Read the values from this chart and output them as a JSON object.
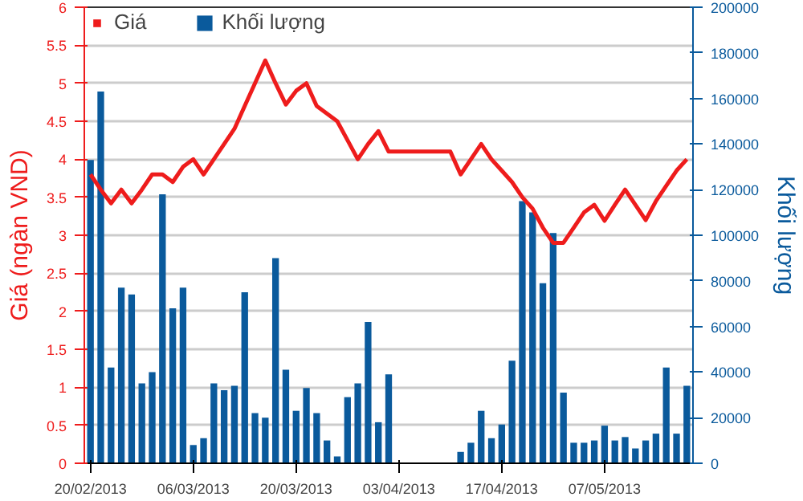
{
  "chart_data": {
    "type": "bar",
    "categories": [
      "20/02/2013",
      null,
      null,
      null,
      null,
      null,
      null,
      null,
      null,
      null,
      "06/03/2013",
      null,
      null,
      null,
      null,
      null,
      null,
      null,
      null,
      null,
      "20/03/2013",
      null,
      null,
      null,
      null,
      null,
      null,
      null,
      null,
      null,
      "03/04/2013",
      null,
      null,
      null,
      null,
      null,
      null,
      null,
      null,
      null,
      "17/04/2013",
      null,
      null,
      null,
      null,
      null,
      null,
      null,
      null,
      null,
      "07/05/2013",
      null,
      null,
      null,
      null,
      null,
      null,
      null,
      null
    ],
    "series": [
      {
        "name": "Giá",
        "type": "line",
        "axis": "y",
        "color": "#ee1c1c",
        "values": [
          3.8,
          3.6,
          3.42,
          3.6,
          3.42,
          3.6,
          3.8,
          3.8,
          3.7,
          3.9,
          4.0,
          3.8,
          4.0,
          4.2,
          4.4,
          4.7,
          5.0,
          5.3,
          5.0,
          4.72,
          4.9,
          5.0,
          4.7,
          4.6,
          4.5,
          4.25,
          4.0,
          4.2,
          4.37,
          4.1,
          4.1,
          4.1,
          4.1,
          4.1,
          4.1,
          4.1,
          3.8,
          4.0,
          4.2,
          4.0,
          3.85,
          3.7,
          3.5,
          3.35,
          3.1,
          2.9,
          2.9,
          3.1,
          3.3,
          3.4,
          3.19,
          3.4,
          3.6,
          3.4,
          3.2,
          3.45,
          3.65,
          3.85,
          4.0
        ]
      },
      {
        "name": "Khối lượng",
        "axis": "y2",
        "color": "#0a5a9c",
        "values": [
          133000,
          163000,
          42000,
          77000,
          74000,
          35000,
          40000,
          118000,
          68000,
          77000,
          8000,
          11000,
          35000,
          32000,
          34000,
          75000,
          22000,
          20000,
          90000,
          41000,
          23000,
          33000,
          22000,
          10000,
          3000,
          29000,
          35000,
          62000,
          18000,
          39000,
          null,
          null,
          null,
          null,
          null,
          null,
          5000,
          9000,
          23000,
          11000,
          17000,
          45000,
          115000,
          110000,
          79000,
          101000,
          31000,
          9000,
          9000,
          10000,
          16500,
          10000,
          11500,
          6500,
          10000,
          13000,
          42000,
          13000,
          34000
        ]
      }
    ],
    "ylabel": "Giá (ngàn VND)",
    "y2label": "Khối lượng",
    "ylim": [
      0,
      6
    ],
    "yticks": [
      0,
      0.5,
      1,
      1.5,
      2,
      2.5,
      3,
      3.5,
      4,
      4.5,
      5,
      5.5,
      6
    ],
    "y2lim": [
      0,
      200000
    ],
    "y2ticks": [
      0,
      20000,
      40000,
      60000,
      80000,
      100000,
      120000,
      140000,
      160000,
      180000,
      200000
    ],
    "grid": "y",
    "legend": "top left"
  }
}
